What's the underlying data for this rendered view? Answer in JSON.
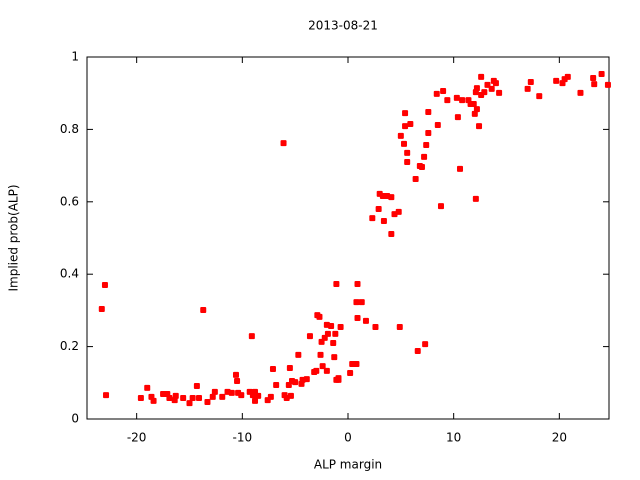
{
  "chart_data": {
    "type": "scatter",
    "title": "2013-08-21",
    "x_label": "ALP margin",
    "y_label": "Implied prob(ALP)",
    "color": "#ff0000",
    "xlim": [
      -24.7,
      24.7
    ],
    "xticks": [
      -20,
      -10,
      0,
      10,
      20
    ],
    "ylim": [
      0,
      1
    ],
    "yticks": [
      0,
      0.2,
      0.4,
      0.6,
      0.8,
      1
    ],
    "x": [
      -23.3,
      -23.0,
      -22.9,
      -19.6,
      -19.0,
      -18.6,
      -18.4,
      -17.5,
      -17.1,
      -16.9,
      -16.4,
      -16.3,
      -15.6,
      -15.0,
      -14.7,
      -14.3,
      -13.7,
      -14.1,
      -13.3,
      -12.8,
      -12.6,
      -11.9,
      -11.4,
      -11.0,
      -10.6,
      -10.5,
      -10.4,
      -10.1,
      -9.3,
      -9.1,
      -9.0,
      -8.8,
      -8.8,
      -8.5,
      -7.6,
      -7.3,
      -7.1,
      -6.8,
      -6.1,
      -6.0,
      -5.8,
      -5.6,
      -5.5,
      -5.4,
      -5.3,
      -5.0,
      -4.7,
      -4.4,
      -4.3,
      -3.9,
      -3.6,
      -3.2,
      -3.0,
      -2.9,
      -2.7,
      -2.6,
      -2.5,
      -2.4,
      -2.2,
      -2.0,
      -2.0,
      -1.9,
      -1.6,
      -1.4,
      -1.3,
      -1.2,
      -1.1,
      -1.1,
      -0.9,
      -0.9,
      -0.7,
      0.2,
      0.4,
      0.8,
      0.8,
      0.9,
      0.9,
      1.3,
      1.7,
      2.3,
      2.6,
      2.9,
      3.0,
      3.3,
      3.4,
      3.7,
      4.1,
      4.1,
      4.4,
      4.8,
      4.9,
      5.0,
      5.3,
      5.4,
      5.4,
      5.6,
      5.6,
      5.9,
      6.4,
      6.6,
      6.8,
      7.0,
      7.2,
      7.3,
      7.4,
      7.6,
      7.6,
      8.4,
      8.5,
      8.8,
      9.0,
      9.4,
      10.3,
      10.4,
      10.6,
      10.8,
      11.4,
      11.6,
      11.9,
      12.0,
      12.1,
      12.1,
      12.2,
      12.2,
      12.4,
      12.6,
      12.6,
      12.9,
      13.2,
      13.6,
      13.8,
      14.0,
      14.3,
      17.0,
      17.3,
      18.1,
      19.7,
      20.3,
      20.5,
      20.8,
      22.0,
      23.2,
      23.3,
      24.0,
      24.6
    ],
    "values": [
      0.304,
      0.37,
      0.066,
      0.058,
      0.086,
      0.061,
      0.05,
      0.069,
      0.069,
      0.058,
      0.052,
      0.064,
      0.058,
      0.044,
      0.058,
      0.091,
      0.301,
      0.058,
      0.047,
      0.061,
      0.075,
      0.061,
      0.075,
      0.072,
      0.122,
      0.105,
      0.072,
      0.066,
      0.075,
      0.229,
      0.066,
      0.05,
      0.075,
      0.064,
      0.052,
      0.061,
      0.138,
      0.094,
      0.762,
      0.066,
      0.058,
      0.094,
      0.141,
      0.064,
      0.105,
      0.102,
      0.177,
      0.097,
      0.108,
      0.11,
      0.229,
      0.13,
      0.133,
      0.287,
      0.282,
      0.177,
      0.213,
      0.146,
      0.224,
      0.133,
      0.26,
      0.235,
      0.257,
      0.21,
      0.171,
      0.235,
      0.108,
      0.373,
      0.108,
      0.113,
      0.254,
      0.127,
      0.152,
      0.323,
      0.152,
      0.373,
      0.279,
      0.323,
      0.271,
      0.555,
      0.254,
      0.58,
      0.622,
      0.616,
      0.547,
      0.616,
      0.511,
      0.613,
      0.566,
      0.572,
      0.254,
      0.782,
      0.76,
      0.809,
      0.845,
      0.735,
      0.71,
      0.815,
      0.663,
      0.188,
      0.699,
      0.696,
      0.724,
      0.207,
      0.757,
      0.79,
      0.848,
      0.898,
      0.812,
      0.588,
      0.906,
      0.881,
      0.887,
      0.834,
      0.691,
      0.881,
      0.881,
      0.87,
      0.87,
      0.843,
      0.608,
      0.903,
      0.914,
      0.856,
      0.809,
      0.945,
      0.895,
      0.903,
      0.923,
      0.912,
      0.934,
      0.928,
      0.901,
      0.912,
      0.931,
      0.892,
      0.934,
      0.928,
      0.939,
      0.945,
      0.901,
      0.942,
      0.925,
      0.953,
      0.923
    ]
  }
}
